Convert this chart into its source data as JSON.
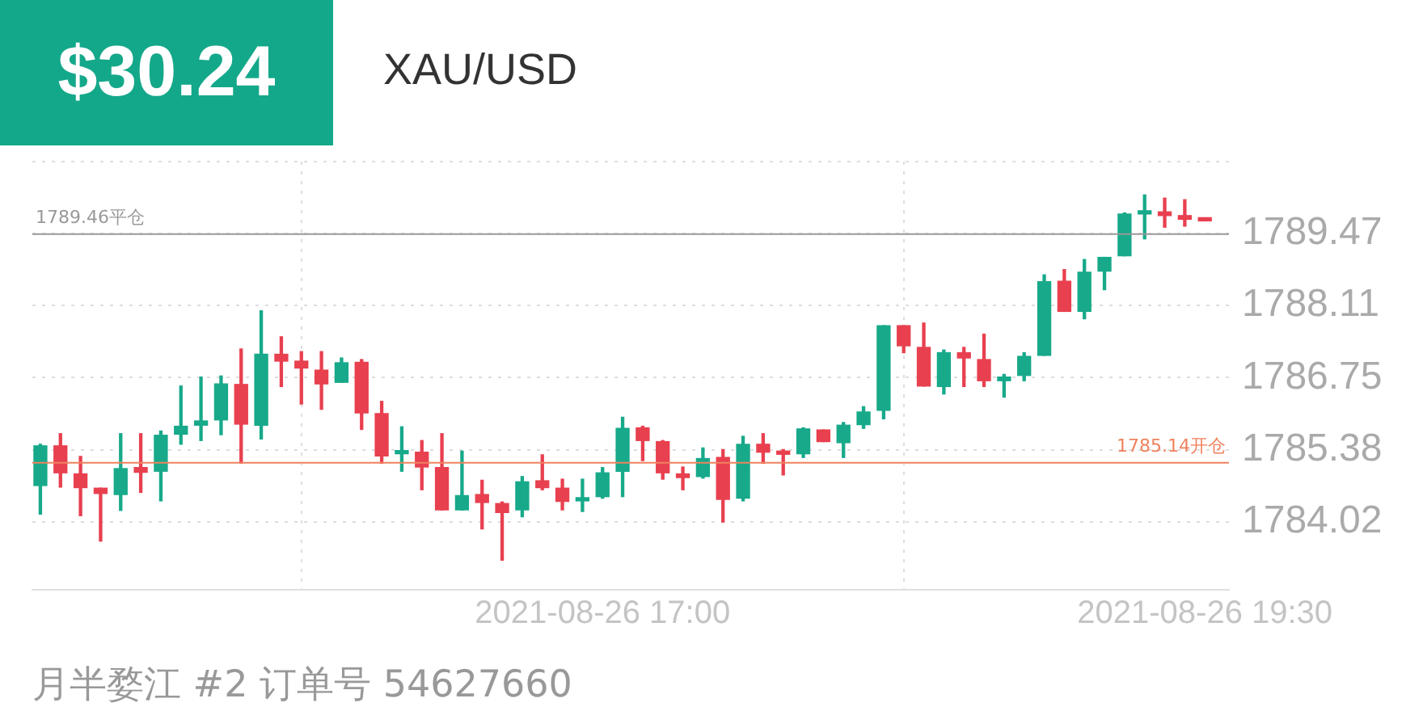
{
  "chart_data": {
    "type": "candlestick",
    "title": "$30.24",
    "subtitle": "XAU/USD",
    "annotations": [
      "月半婺江 #2   订单号 54627660"
    ],
    "x": [
      "2021-08-26T14:40",
      "2021-08-26T14:45",
      "2021-08-26T14:50",
      "2021-08-26T14:55",
      "2021-08-26T15:00",
      "2021-08-26T15:05",
      "2021-08-26T15:10",
      "2021-08-26T15:15",
      "2021-08-26T15:20",
      "2021-08-26T15:25",
      "2021-08-26T15:30",
      "2021-08-26T15:35",
      "2021-08-26T15:40",
      "2021-08-26T15:45",
      "2021-08-26T15:50",
      "2021-08-26T15:55",
      "2021-08-26T16:00",
      "2021-08-26T16:05",
      "2021-08-26T16:10",
      "2021-08-26T16:15",
      "2021-08-26T16:20",
      "2021-08-26T16:25",
      "2021-08-26T16:30",
      "2021-08-26T16:35",
      "2021-08-26T16:40",
      "2021-08-26T16:45",
      "2021-08-26T16:50",
      "2021-08-26T16:55",
      "2021-08-26T17:00",
      "2021-08-26T17:05",
      "2021-08-26T17:10",
      "2021-08-26T17:15",
      "2021-08-26T17:20",
      "2021-08-26T17:25",
      "2021-08-26T17:30",
      "2021-08-26T17:35",
      "2021-08-26T17:40",
      "2021-08-26T17:45",
      "2021-08-26T17:50",
      "2021-08-26T17:55",
      "2021-08-26T18:00",
      "2021-08-26T18:05",
      "2021-08-26T18:10",
      "2021-08-26T18:15",
      "2021-08-26T18:20",
      "2021-08-26T18:25",
      "2021-08-26T18:30",
      "2021-08-26T18:35",
      "2021-08-26T18:40",
      "2021-08-26T18:45",
      "2021-08-26T18:50",
      "2021-08-26T18:55",
      "2021-08-26T19:00",
      "2021-08-26T19:05",
      "2021-08-26T19:10",
      "2021-08-26T19:15",
      "2021-08-26T19:20",
      "2021-08-26T19:25",
      "2021-08-26T19:30"
    ],
    "ohlc": [
      [
        1784.71,
        1785.49,
        1784.17,
        1785.46
      ],
      [
        1785.46,
        1785.69,
        1784.68,
        1784.95
      ],
      [
        1784.93,
        1785.26,
        1784.14,
        1784.67
      ],
      [
        1784.66,
        1784.66,
        1783.66,
        1784.56
      ],
      [
        1784.54,
        1785.69,
        1784.24,
        1785.03
      ],
      [
        1785.05,
        1785.69,
        1784.58,
        1784.96
      ],
      [
        1784.98,
        1785.74,
        1784.42,
        1785.66
      ],
      [
        1785.68,
        1786.59,
        1785.49,
        1785.83
      ],
      [
        1785.85,
        1786.76,
        1785.56,
        1785.93
      ],
      [
        1785.95,
        1786.78,
        1785.67,
        1786.63
      ],
      [
        1786.62,
        1787.29,
        1785.13,
        1785.87
      ],
      [
        1785.85,
        1788.01,
        1785.59,
        1787.19
      ],
      [
        1787.19,
        1787.52,
        1786.58,
        1787.06
      ],
      [
        1787.06,
        1787.24,
        1786.25,
        1786.93
      ],
      [
        1786.89,
        1787.24,
        1786.15,
        1786.63
      ],
      [
        1786.66,
        1787.12,
        1786.66,
        1787.03
      ],
      [
        1787.04,
        1787.09,
        1785.77,
        1786.08
      ],
      [
        1786.07,
        1786.3,
        1785.13,
        1785.27
      ],
      [
        1785.31,
        1785.82,
        1784.98,
        1785.36
      ],
      [
        1785.34,
        1785.56,
        1784.63,
        1785.06
      ],
      [
        1785.05,
        1785.69,
        1784.25,
        1784.25
      ],
      [
        1784.25,
        1785.36,
        1784.25,
        1784.52
      ],
      [
        1784.54,
        1784.81,
        1783.89,
        1784.39
      ],
      [
        1784.37,
        1784.4,
        1783.3,
        1784.2
      ],
      [
        1784.25,
        1784.88,
        1784.12,
        1784.78
      ],
      [
        1784.8,
        1785.29,
        1784.63,
        1784.67
      ],
      [
        1784.66,
        1784.83,
        1784.25,
        1784.41
      ],
      [
        1784.42,
        1784.83,
        1784.22,
        1784.46
      ],
      [
        1784.5,
        1785.05,
        1784.47,
        1784.95
      ],
      [
        1784.98,
        1786,
        1784.5,
        1785.79
      ],
      [
        1785.8,
        1785.83,
        1785.18,
        1785.56
      ],
      [
        1785.54,
        1785.56,
        1784.83,
        1784.95
      ],
      [
        1784.93,
        1785.06,
        1784.63,
        1784.86
      ],
      [
        1784.88,
        1785.42,
        1784.85,
        1785.22
      ],
      [
        1785.24,
        1785.39,
        1784.02,
        1784.45
      ],
      [
        1784.47,
        1785.64,
        1784.42,
        1785.49
      ],
      [
        1785.49,
        1785.69,
        1785.13,
        1785.34
      ],
      [
        1785.33,
        1785.39,
        1784.91,
        1785.3
      ],
      [
        1785.31,
        1785.8,
        1785.24,
        1785.78
      ],
      [
        1785.76,
        1785.76,
        1785.54,
        1785.54
      ],
      [
        1785.52,
        1785.9,
        1785.24,
        1785.85
      ],
      [
        1785.86,
        1786.2,
        1785.79,
        1786.1
      ],
      [
        1786.13,
        1787.73,
        1785.97,
        1787.73
      ],
      [
        1787.73,
        1787.73,
        1787.22,
        1787.35
      ],
      [
        1787.32,
        1787.78,
        1786.59,
        1786.59
      ],
      [
        1786.58,
        1787.27,
        1786.44,
        1787.22
      ],
      [
        1787.22,
        1787.32,
        1786.58,
        1787.12
      ],
      [
        1787.09,
        1787.57,
        1786.58,
        1786.69
      ],
      [
        1786.69,
        1786.81,
        1786.38,
        1786.76
      ],
      [
        1786.79,
        1787.22,
        1786.69,
        1787.15
      ],
      [
        1787.17,
        1788.69,
        1787.17,
        1788.56
      ],
      [
        1788.57,
        1788.79,
        1788,
        1788
      ],
      [
        1788,
        1788.98,
        1787.86,
        1788.74
      ],
      [
        1788.76,
        1789.02,
        1788.41,
        1789.02
      ],
      [
        1789.05,
        1789.86,
        1789.05,
        1789.84
      ],
      [
        1789.84,
        1790.2,
        1789.37,
        1789.88
      ],
      [
        1789.88,
        1790.14,
        1789.59,
        1789.81
      ],
      [
        1789.81,
        1790.11,
        1789.61,
        1789.74
      ],
      [
        1789.75,
        1789.75,
        1789.71,
        1789.71
      ]
    ],
    "colors": [
      "#17a98a",
      "#e8404f",
      "#e8404f",
      "#e8404f",
      "#17a98a",
      "#e8404f",
      "#17a98a",
      "#17a98a",
      "#17a98a",
      "#17a98a",
      "#e8404f",
      "#17a98a",
      "#e8404f",
      "#e8404f",
      "#e8404f",
      "#17a98a",
      "#e8404f",
      "#e8404f",
      "#17a98a",
      "#e8404f",
      "#e8404f",
      "#17a98a",
      "#e8404f",
      "#e8404f",
      "#17a98a",
      "#e8404f",
      "#e8404f",
      "#17a98a",
      "#17a98a",
      "#17a98a",
      "#e8404f",
      "#e8404f",
      "#e8404f",
      "#17a98a",
      "#e8404f",
      "#17a98a",
      "#e8404f",
      "#e8404f",
      "#17a98a",
      "#e8404f",
      "#17a98a",
      "#17a98a",
      "#17a98a",
      "#e8404f",
      "#e8404f",
      "#17a98a",
      "#e8404f",
      "#e8404f",
      "#17a98a",
      "#17a98a",
      "#17a98a",
      "#e8404f",
      "#17a98a",
      "#17a98a",
      "#17a98a",
      "#17a98a",
      "#e8404f",
      "#e8404f",
      "#e8404f"
    ],
    "xlim": [
      "2021-08-26T14:38",
      "2021-08-26T19:36"
    ],
    "xticks": [
      {
        "value": "2021-08-26T17:00",
        "label": "2021-08-26 17:00"
      },
      {
        "value": "2021-08-26T19:30",
        "label": "2021-08-26 19:30"
      }
    ],
    "ylim": [
      1782.74,
      1790.83
    ],
    "yticks": [
      1784.02,
      1785.38,
      1786.75,
      1788.11,
      1789.47,
      {
        "value": 1790.83,
        "label": null
      }
    ],
    "ref_lines": [
      {
        "axis": "y",
        "value": 1789.46,
        "label": "1789.46平仓",
        "color": "#999999"
      },
      {
        "axis": "y",
        "value": 1785.14,
        "label": "1785.14开仓",
        "color": "#f0825e"
      }
    ],
    "grid": true,
    "legend": false
  }
}
